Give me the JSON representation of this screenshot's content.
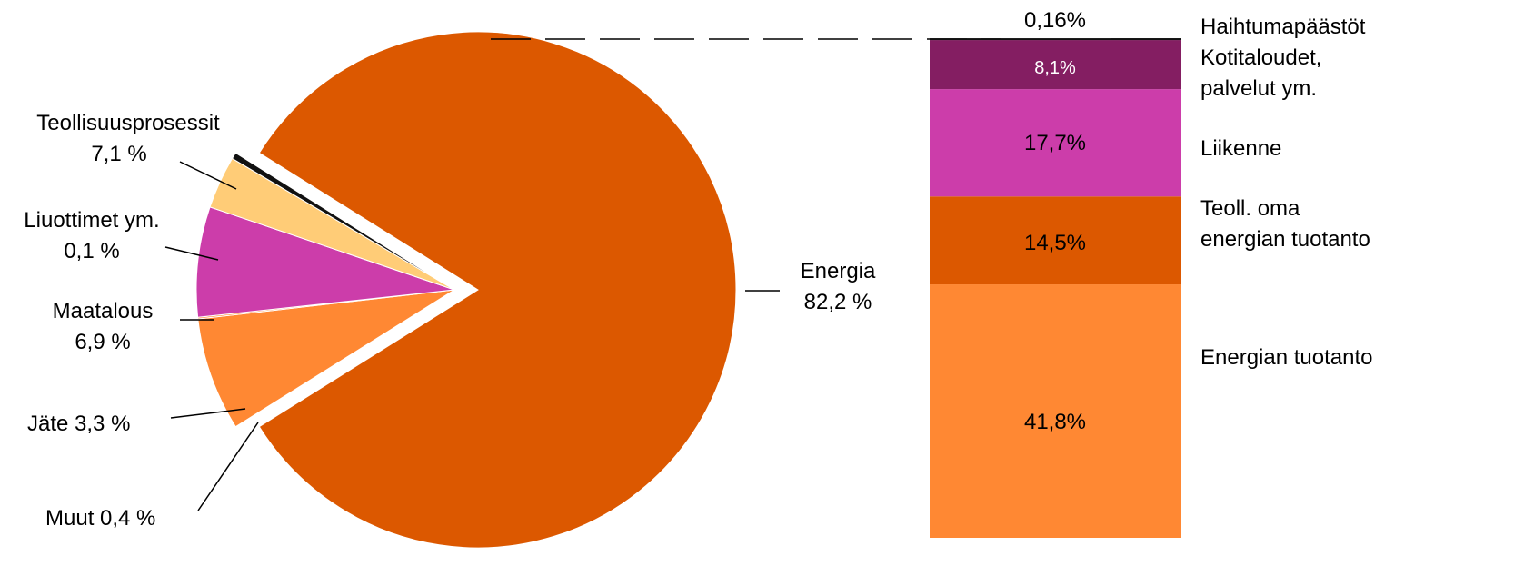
{
  "chart_data": [
    {
      "type": "pie",
      "slices": [
        {
          "label": "Energia",
          "value_label": "82,2 %",
          "value": 82.2,
          "color": "#DC5800",
          "exploded": false
        },
        {
          "label": "Teollisuusprosessit",
          "value_label": "7,1 %",
          "value": 7.1,
          "color": "#FF8833",
          "exploded": true
        },
        {
          "label": "Liuottimet ym.",
          "value_label": "0,1 %",
          "value": 0.1,
          "color": "#FF8833",
          "exploded": true
        },
        {
          "label": "Maatalous",
          "value_label": "6,9 %",
          "value": 6.9,
          "color": "#CC3DAA",
          "exploded": true
        },
        {
          "label": "Jäte",
          "value_label": "3,3 %",
          "value": 3.3,
          "color": "#FFCC77",
          "exploded": true
        },
        {
          "label": "Muut",
          "value_label": "0,4 %",
          "value": 0.4,
          "color": "#111111",
          "exploded": true
        }
      ],
      "callouts": {
        "energia": [
          "Energia",
          "82,2 %"
        ],
        "teollisuus": [
          "Teollisuusprosessit",
          "7,1 %"
        ],
        "liuottimet": [
          "Liuottimet ym.",
          "0,1 %"
        ],
        "maatalous": [
          "Maatalous",
          "6,9 %"
        ],
        "jate": "Jäte 3,3 %",
        "muut": "Muut 0,4 %"
      }
    },
    {
      "type": "bar",
      "stacked": true,
      "segments": [
        {
          "label": "Energian tuotanto",
          "value": 41.8,
          "value_label": "41,8%",
          "color": "#FF8833",
          "text_color": "#000000"
        },
        {
          "label": "Teoll. oma energian tuotanto",
          "label_lines": [
            "Teoll. oma",
            "energian tuotanto"
          ],
          "value": 14.5,
          "value_label": "14,5%",
          "color": "#DC5800",
          "text_color": "#000000"
        },
        {
          "label": "Liikenne",
          "value": 17.7,
          "value_label": "17,7%",
          "color": "#CC3DAA",
          "text_color": "#000000"
        },
        {
          "label": "Kotitaloudet, palvelut ym.",
          "label_lines": [
            "Kotitaloudet,",
            "palvelut ym."
          ],
          "value": 8.1,
          "value_label": "8,1%",
          "color": "#841E62",
          "text_color": "#ffffff"
        },
        {
          "label": "Haihtumapäästöt",
          "value": 0.16,
          "value_label": "0,16%",
          "color": "#111111",
          "text_color": "#000000"
        }
      ]
    }
  ]
}
